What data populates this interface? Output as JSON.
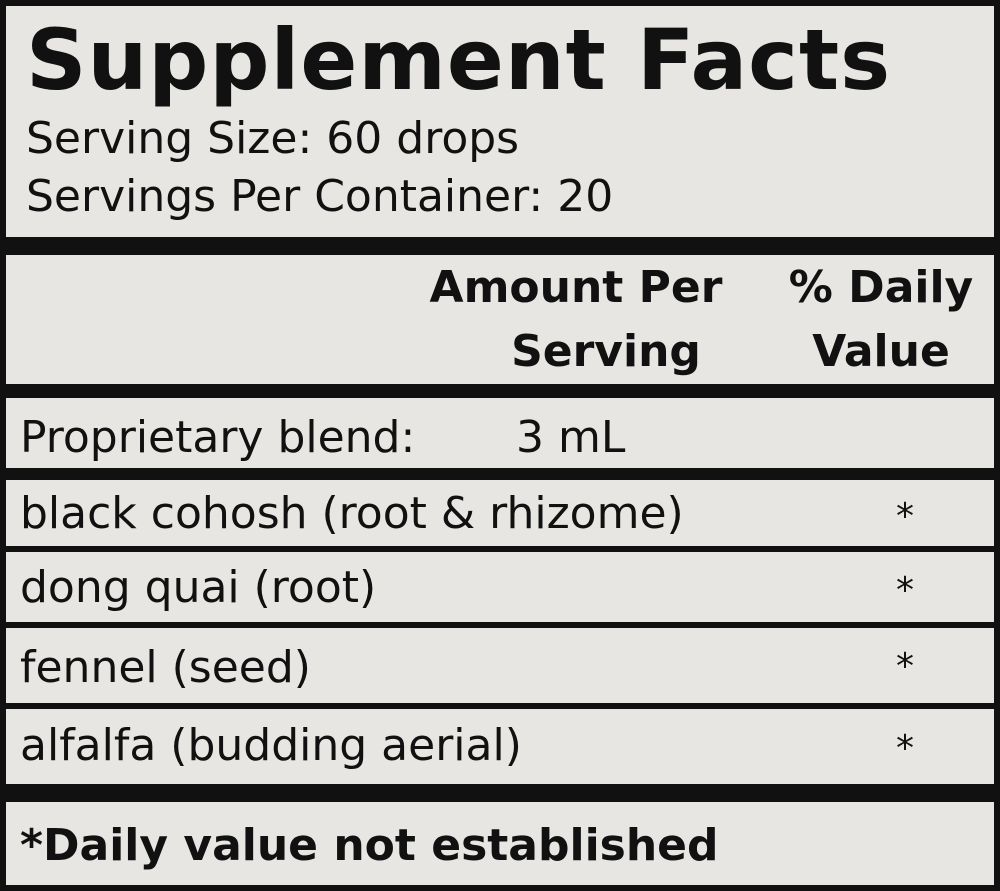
{
  "title": "Supplement Facts",
  "serving_size": "Serving Size: 60 drops",
  "servings_per_container": "Servings Per Container: 20",
  "headers": {
    "amount_line1": "Amount Per",
    "amount_line2": "Serving",
    "dv_line1": "% Daily",
    "dv_line2": "Value"
  },
  "blend": {
    "name": "Proprietary blend:",
    "amount": "3 mL"
  },
  "ingredients": [
    {
      "name": "black cohosh (root & rhizome)",
      "dv": "*"
    },
    {
      "name": "dong quai (root)",
      "dv": "*"
    },
    {
      "name": "fennel (seed)",
      "dv": "*"
    },
    {
      "name": "alfalfa (budding aerial)",
      "dv": "*"
    }
  ],
  "footnote": "*Daily value not established"
}
